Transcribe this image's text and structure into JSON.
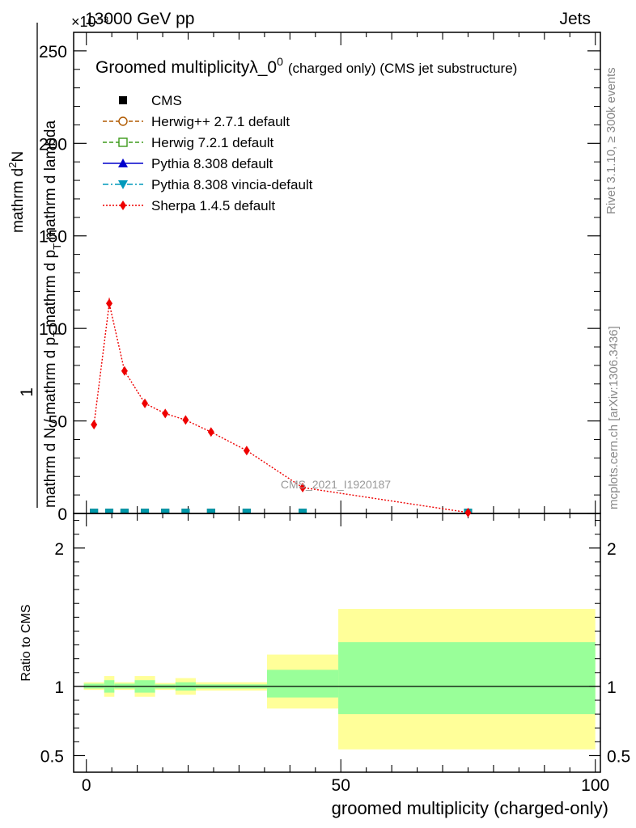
{
  "header": {
    "left": "13000 GeV pp",
    "right": "Jets",
    "exponent": "×10⁻³"
  },
  "plot_title": {
    "main": "Groomed multiplicityλ_0",
    "sup": "0",
    "sub": "(charged only) (CMS jet substructure)"
  },
  "side_labels": {
    "rivet": "Rivet 3.1.10, ≥ 300k events",
    "mcplots": "mcplots.cern.ch [arXiv:1306.3436]"
  },
  "watermark": "CMS_2021_I1920187",
  "chart_data": [
    {
      "type": "scatter",
      "title": "Groomed multiplicityλ_0⁰ (charged only) (CMS jet substructure)",
      "xlabel": "groomed multiplicity (charged-only)",
      "ylabel_parts": {
        "one": "1",
        "denominator": "mathrm d N / mathrm d p",
        "den_sub": "T",
        "numerator_tail": "mathrm d p",
        "num_tail_sub": "T",
        "numerator_end": "mathrm d lambda",
        "numerator_top": "mathrm d",
        "numerator_sup": "2",
        "numerator_n": "N"
      },
      "xlim": [
        -2.5,
        101
      ],
      "ylim": [
        0,
        260
      ],
      "y_scale_note": "×10⁻³",
      "x_ticks": [
        "0",
        "50",
        "100"
      ],
      "y_ticks": [
        "0",
        "50",
        "100",
        "150",
        "200",
        "250"
      ],
      "legend_position": "top-left",
      "legend": [
        {
          "label": "CMS",
          "color": "#000000",
          "marker": "square-filled",
          "line": "none"
        },
        {
          "label": "Herwig++ 2.7.1 default",
          "color": "#b05a00",
          "marker": "circle-open",
          "line": "dashed"
        },
        {
          "label": "Herwig 7.2.1 default",
          "color": "#3c9a1a",
          "marker": "square-open",
          "line": "dashed"
        },
        {
          "label": "Pythia 8.308 default",
          "color": "#0000cc",
          "marker": "triangle-up",
          "line": "solid"
        },
        {
          "label": "Pythia 8.308 vincia-default",
          "color": "#0099bb",
          "marker": "triangle-down",
          "line": "dashdot"
        },
        {
          "label": "Sherpa 1.4.5 default",
          "color": "#ee0000",
          "marker": "diamond",
          "line": "dotted"
        }
      ],
      "series": [
        {
          "name": "Sherpa 1.4.5 default",
          "x": [
            1.5,
            4.5,
            7.5,
            11.5,
            15.5,
            19.5,
            24.5,
            31.5,
            42.5,
            75
          ],
          "y": [
            48,
            113.5,
            77,
            59.5,
            54,
            50.5,
            44,
            34,
            14,
            0.5
          ]
        },
        {
          "name": "CMS",
          "x": [
            1.5,
            4.5,
            7.5,
            11.5,
            15.5,
            19.5,
            24.5,
            31.5,
            42.5,
            75
          ],
          "y": [
            0.4,
            0.4,
            0.4,
            0.4,
            0.4,
            0.4,
            0.4,
            0.4,
            0.4,
            0.4
          ]
        }
      ]
    },
    {
      "type": "area",
      "ylabel": "Ratio to CMS",
      "xlim": [
        -2.5,
        101
      ],
      "ylim": [
        0.38,
        2.25
      ],
      "y_ticks": [
        "0.5",
        "1",
        "2"
      ],
      "y_tick_values": [
        0.5,
        1,
        2
      ],
      "reference_line": 1,
      "bands": [
        {
          "x0": -0.5,
          "x1": 3.5,
          "yellow": [
            0.975,
            1.03
          ],
          "green": [
            0.985,
            1.02
          ]
        },
        {
          "x0": 3.5,
          "x1": 5.5,
          "yellow": [
            0.925,
            1.075
          ],
          "green": [
            0.955,
            1.045
          ]
        },
        {
          "x0": 5.5,
          "x1": 9.5,
          "yellow": [
            0.975,
            1.03
          ],
          "green": [
            0.985,
            1.02
          ]
        },
        {
          "x0": 9.5,
          "x1": 13.5,
          "yellow": [
            0.925,
            1.075
          ],
          "green": [
            0.955,
            1.045
          ]
        },
        {
          "x0": 13.5,
          "x1": 17.5,
          "yellow": [
            0.975,
            1.025
          ],
          "green": [
            0.985,
            1.015
          ]
        },
        {
          "x0": 17.5,
          "x1": 21.5,
          "yellow": [
            0.94,
            1.06
          ],
          "green": [
            0.97,
            1.03
          ]
        },
        {
          "x0": 21.5,
          "x1": 35.5,
          "yellow": [
            0.97,
            1.03
          ],
          "green": [
            0.985,
            1.015
          ]
        },
        {
          "x0": 35.5,
          "x1": 49.5,
          "yellow": [
            0.84,
            1.23
          ],
          "green": [
            0.92,
            1.12
          ]
        },
        {
          "x0": 49.5,
          "x1": 100,
          "yellow": [
            0.545,
            1.56
          ],
          "green": [
            0.8,
            1.32
          ]
        }
      ]
    }
  ]
}
